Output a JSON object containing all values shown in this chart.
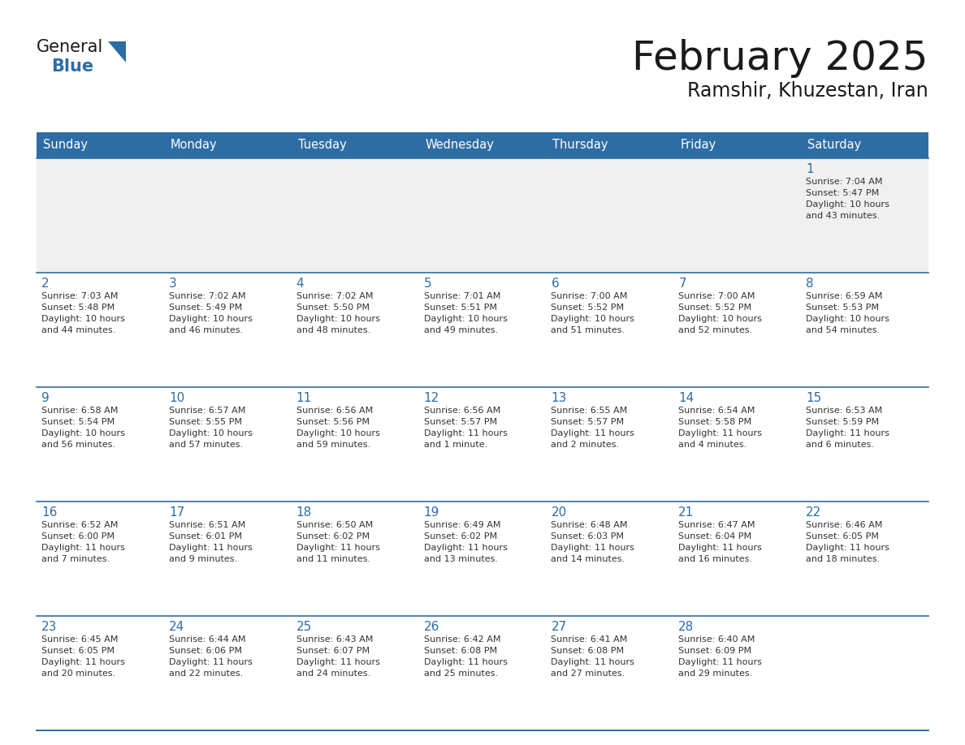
{
  "title": "February 2025",
  "subtitle": "Ramshir, Khuzestan, Iran",
  "header_bg": "#2E6DA4",
  "header_text_color": "#FFFFFF",
  "row1_bg": "#F0F0F0",
  "row_bg": "#FFFFFF",
  "cell_text_color": "#333333",
  "day_number_color": "#2E6DA4",
  "separator_color": "#2E6DA4",
  "days_of_week": [
    "Sunday",
    "Monday",
    "Tuesday",
    "Wednesday",
    "Thursday",
    "Friday",
    "Saturday"
  ],
  "weeks": [
    [
      {
        "day": "",
        "sunrise": "",
        "sunset": "",
        "daylight": ""
      },
      {
        "day": "",
        "sunrise": "",
        "sunset": "",
        "daylight": ""
      },
      {
        "day": "",
        "sunrise": "",
        "sunset": "",
        "daylight": ""
      },
      {
        "day": "",
        "sunrise": "",
        "sunset": "",
        "daylight": ""
      },
      {
        "day": "",
        "sunrise": "",
        "sunset": "",
        "daylight": ""
      },
      {
        "day": "",
        "sunrise": "",
        "sunset": "",
        "daylight": ""
      },
      {
        "day": "1",
        "sunrise": "7:04 AM",
        "sunset": "5:47 PM",
        "daylight": "10 hours\nand 43 minutes."
      }
    ],
    [
      {
        "day": "2",
        "sunrise": "7:03 AM",
        "sunset": "5:48 PM",
        "daylight": "10 hours\nand 44 minutes."
      },
      {
        "day": "3",
        "sunrise": "7:02 AM",
        "sunset": "5:49 PM",
        "daylight": "10 hours\nand 46 minutes."
      },
      {
        "day": "4",
        "sunrise": "7:02 AM",
        "sunset": "5:50 PM",
        "daylight": "10 hours\nand 48 minutes."
      },
      {
        "day": "5",
        "sunrise": "7:01 AM",
        "sunset": "5:51 PM",
        "daylight": "10 hours\nand 49 minutes."
      },
      {
        "day": "6",
        "sunrise": "7:00 AM",
        "sunset": "5:52 PM",
        "daylight": "10 hours\nand 51 minutes."
      },
      {
        "day": "7",
        "sunrise": "7:00 AM",
        "sunset": "5:52 PM",
        "daylight": "10 hours\nand 52 minutes."
      },
      {
        "day": "8",
        "sunrise": "6:59 AM",
        "sunset": "5:53 PM",
        "daylight": "10 hours\nand 54 minutes."
      }
    ],
    [
      {
        "day": "9",
        "sunrise": "6:58 AM",
        "sunset": "5:54 PM",
        "daylight": "10 hours\nand 56 minutes."
      },
      {
        "day": "10",
        "sunrise": "6:57 AM",
        "sunset": "5:55 PM",
        "daylight": "10 hours\nand 57 minutes."
      },
      {
        "day": "11",
        "sunrise": "6:56 AM",
        "sunset": "5:56 PM",
        "daylight": "10 hours\nand 59 minutes."
      },
      {
        "day": "12",
        "sunrise": "6:56 AM",
        "sunset": "5:57 PM",
        "daylight": "11 hours\nand 1 minute."
      },
      {
        "day": "13",
        "sunrise": "6:55 AM",
        "sunset": "5:57 PM",
        "daylight": "11 hours\nand 2 minutes."
      },
      {
        "day": "14",
        "sunrise": "6:54 AM",
        "sunset": "5:58 PM",
        "daylight": "11 hours\nand 4 minutes."
      },
      {
        "day": "15",
        "sunrise": "6:53 AM",
        "sunset": "5:59 PM",
        "daylight": "11 hours\nand 6 minutes."
      }
    ],
    [
      {
        "day": "16",
        "sunrise": "6:52 AM",
        "sunset": "6:00 PM",
        "daylight": "11 hours\nand 7 minutes."
      },
      {
        "day": "17",
        "sunrise": "6:51 AM",
        "sunset": "6:01 PM",
        "daylight": "11 hours\nand 9 minutes."
      },
      {
        "day": "18",
        "sunrise": "6:50 AM",
        "sunset": "6:02 PM",
        "daylight": "11 hours\nand 11 minutes."
      },
      {
        "day": "19",
        "sunrise": "6:49 AM",
        "sunset": "6:02 PM",
        "daylight": "11 hours\nand 13 minutes."
      },
      {
        "day": "20",
        "sunrise": "6:48 AM",
        "sunset": "6:03 PM",
        "daylight": "11 hours\nand 14 minutes."
      },
      {
        "day": "21",
        "sunrise": "6:47 AM",
        "sunset": "6:04 PM",
        "daylight": "11 hours\nand 16 minutes."
      },
      {
        "day": "22",
        "sunrise": "6:46 AM",
        "sunset": "6:05 PM",
        "daylight": "11 hours\nand 18 minutes."
      }
    ],
    [
      {
        "day": "23",
        "sunrise": "6:45 AM",
        "sunset": "6:05 PM",
        "daylight": "11 hours\nand 20 minutes."
      },
      {
        "day": "24",
        "sunrise": "6:44 AM",
        "sunset": "6:06 PM",
        "daylight": "11 hours\nand 22 minutes."
      },
      {
        "day": "25",
        "sunrise": "6:43 AM",
        "sunset": "6:07 PM",
        "daylight": "11 hours\nand 24 minutes."
      },
      {
        "day": "26",
        "sunrise": "6:42 AM",
        "sunset": "6:08 PM",
        "daylight": "11 hours\nand 25 minutes."
      },
      {
        "day": "27",
        "sunrise": "6:41 AM",
        "sunset": "6:08 PM",
        "daylight": "11 hours\nand 27 minutes."
      },
      {
        "day": "28",
        "sunrise": "6:40 AM",
        "sunset": "6:09 PM",
        "daylight": "11 hours\nand 29 minutes."
      },
      {
        "day": "",
        "sunrise": "",
        "sunset": "",
        "daylight": ""
      }
    ]
  ],
  "logo_general_color": "#1a1a1a",
  "logo_blue_color": "#2E6DA4",
  "logo_triangle_color": "#2E6DA4"
}
